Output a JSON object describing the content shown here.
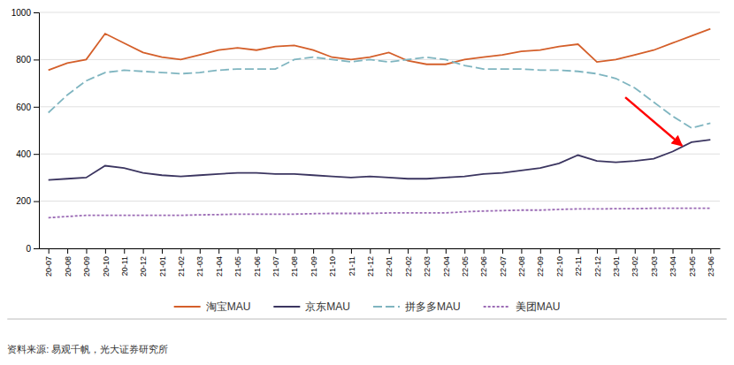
{
  "chart_data": {
    "type": "line",
    "categories": [
      "20-07",
      "20-08",
      "20-09",
      "20-10",
      "20-11",
      "20-12",
      "21-01",
      "21-02",
      "21-03",
      "21-04",
      "21-05",
      "21-06",
      "21-07",
      "21-08",
      "21-09",
      "21-10",
      "21-11",
      "21-12",
      "22-01",
      "22-02",
      "22-03",
      "22-04",
      "22-05",
      "22-06",
      "22-07",
      "22-08",
      "22-09",
      "22-10",
      "22-11",
      "22-12",
      "23-01",
      "23-02",
      "23-03",
      "23-04",
      "23-05",
      "23-06"
    ],
    "series": [
      {
        "name": "淘宝MAU",
        "color": "#d45f2a",
        "line_style": "solid",
        "values": [
          755,
          785,
          800,
          910,
          870,
          830,
          810,
          800,
          820,
          840,
          850,
          840,
          855,
          860,
          840,
          810,
          800,
          810,
          830,
          795,
          780,
          780,
          800,
          810,
          820,
          835,
          840,
          855,
          865,
          790,
          800,
          820,
          840,
          870,
          900,
          930
        ]
      },
      {
        "name": "京东MAU",
        "color": "#3b3560",
        "line_style": "solid",
        "values": [
          290,
          295,
          300,
          350,
          340,
          320,
          310,
          305,
          310,
          315,
          320,
          320,
          315,
          315,
          310,
          305,
          300,
          305,
          300,
          295,
          295,
          300,
          305,
          315,
          320,
          330,
          340,
          360,
          395,
          370,
          365,
          370,
          380,
          410,
          450,
          460
        ]
      },
      {
        "name": "拼多多MAU",
        "color": "#7fb5c0",
        "line_style": "dashed",
        "values": [
          575,
          650,
          710,
          745,
          755,
          750,
          745,
          740,
          745,
          755,
          760,
          760,
          760,
          800,
          810,
          800,
          790,
          800,
          790,
          800,
          810,
          800,
          775,
          760,
          760,
          760,
          755,
          755,
          750,
          740,
          720,
          680,
          620,
          560,
          510,
          530
        ]
      },
      {
        "name": "美团MAU",
        "color": "#9b6bb5",
        "line_style": "dotted",
        "values": [
          130,
          135,
          140,
          140,
          140,
          140,
          140,
          140,
          142,
          143,
          145,
          145,
          145,
          145,
          147,
          148,
          148,
          148,
          150,
          150,
          150,
          150,
          155,
          158,
          160,
          162,
          162,
          165,
          167,
          167,
          168,
          168,
          170,
          170,
          170,
          170
        ]
      }
    ],
    "ylim": [
      0,
      1000
    ],
    "yticks": [
      0,
      200,
      400,
      600,
      800,
      1000
    ],
    "grid": true,
    "legend": "bottom",
    "annotations": [
      {
        "type": "arrow",
        "x": [
          30.5,
          33.5
        ],
        "y": [
          640,
          435
        ],
        "color": "red"
      }
    ],
    "source": "资料来源: 易观千帆，光大证券研究所"
  }
}
